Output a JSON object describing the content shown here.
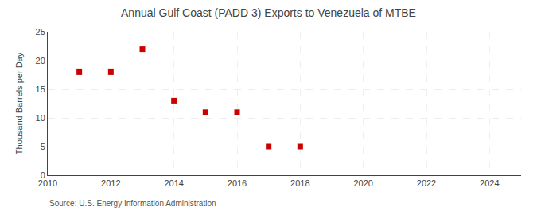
{
  "chart_data": {
    "type": "scatter",
    "title": "Annual Gulf Coast (PADD 3) Exports to Venezuela of MTBE",
    "ylabel": "Thousand Barrels per Day",
    "annotations": [
      "Source: U.S. Energy Information Administration"
    ],
    "x": [
      2011,
      2012,
      2013,
      2014,
      2015,
      2016,
      2017,
      2018
    ],
    "values": [
      18,
      18,
      22,
      13,
      11,
      11,
      5,
      5
    ],
    "color": "#cc0000",
    "marker": "square",
    "xlim": [
      2010,
      2025
    ],
    "xticks": [
      2010,
      2012,
      2014,
      2016,
      2018,
      2020,
      2022,
      2024
    ],
    "ylim": [
      0,
      25
    ],
    "yticks": [
      0,
      5,
      10,
      15,
      20,
      25
    ],
    "grid": true
  }
}
